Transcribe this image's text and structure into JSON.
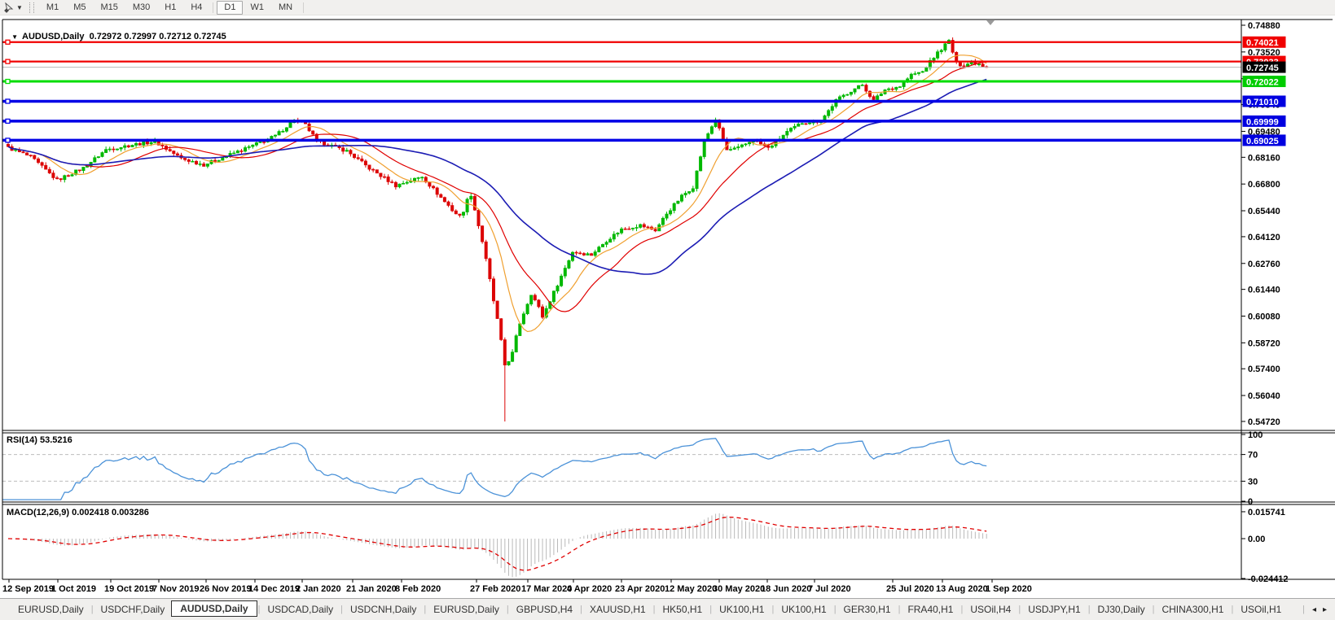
{
  "toolbar": {
    "timeframes": [
      "M1",
      "M5",
      "M15",
      "M30",
      "H1",
      "H4",
      "D1",
      "W1",
      "MN"
    ],
    "active_timeframe": "D1"
  },
  "chart": {
    "title_symbol": "AUDUSD,Daily",
    "title_ohlc": "0.72972 0.72997 0.72712 0.72745",
    "rsi_label": "RSI(14) 53.5216",
    "macd_label": "MACD(12,26,9) 0.002418 0.003286"
  },
  "chart_data": {
    "type": "candlestick",
    "symbol": "AUDUSD",
    "timeframe": "Daily",
    "current_quote": {
      "open": 0.72972,
      "high": 0.72997,
      "low": 0.72712,
      "close": 0.72745
    },
    "y_range": [
      0.5472,
      0.7488
    ],
    "y_axis_labels": [
      "0.74880",
      "0.73520",
      "0.72160",
      "0.70840",
      "0.69480",
      "0.68160",
      "0.66800",
      "0.65440",
      "0.64120",
      "0.62760",
      "0.61440",
      "0.60080",
      "0.58720",
      "0.57400",
      "0.56040",
      "0.54720"
    ],
    "x_axis_labels": [
      "12 Sep 2019",
      "1 Oct 2019",
      "19 Oct 2019",
      "7 Nov 2019",
      "26 Nov 2019",
      "14 Dec 2019",
      "2 Jan 2020",
      "21 Jan 2020",
      "8 Feb 2020",
      "27 Feb 2020",
      "17 Mar 2020",
      "4 Apr 2020",
      "23 Apr 2020",
      "12 May 2020",
      "30 May 2020",
      "18 Jun 2020",
      "7 Jul 2020",
      "25 Jul 2020",
      "13 Aug 2020",
      "1 Sep 2020"
    ],
    "candle_count": 261,
    "close_anchors": [
      [
        0,
        0.6865
      ],
      [
        6,
        0.6818
      ],
      [
        13,
        0.67
      ],
      [
        20,
        0.6762
      ],
      [
        26,
        0.6855
      ],
      [
        33,
        0.688
      ],
      [
        39,
        0.6897
      ],
      [
        46,
        0.681
      ],
      [
        52,
        0.6778
      ],
      [
        59,
        0.683
      ],
      [
        65,
        0.6875
      ],
      [
        71,
        0.6925
      ],
      [
        76,
        0.7005
      ],
      [
        79,
        0.698
      ],
      [
        82,
        0.69
      ],
      [
        90,
        0.6848
      ],
      [
        96,
        0.676
      ],
      [
        103,
        0.6672
      ],
      [
        110,
        0.6718
      ],
      [
        116,
        0.659
      ],
      [
        120,
        0.6512
      ],
      [
        123,
        0.6632
      ],
      [
        126,
        0.639
      ],
      [
        130,
        0.5985
      ],
      [
        132,
        0.576
      ],
      [
        134,
        0.5815
      ],
      [
        136,
        0.5975
      ],
      [
        139,
        0.613
      ],
      [
        142,
        0.6005
      ],
      [
        146,
        0.617
      ],
      [
        150,
        0.6335
      ],
      [
        155,
        0.632
      ],
      [
        159,
        0.6392
      ],
      [
        163,
        0.645
      ],
      [
        168,
        0.647
      ],
      [
        172,
        0.6445
      ],
      [
        175,
        0.653
      ],
      [
        179,
        0.6618
      ],
      [
        182,
        0.6665
      ],
      [
        185,
        0.69
      ],
      [
        188,
        0.701
      ],
      [
        191,
        0.6852
      ],
      [
        194,
        0.6862
      ],
      [
        198,
        0.6905
      ],
      [
        202,
        0.6862
      ],
      [
        207,
        0.6945
      ],
      [
        211,
        0.6992
      ],
      [
        216,
        0.7002
      ],
      [
        220,
        0.7105
      ],
      [
        224,
        0.7155
      ],
      [
        227,
        0.7185
      ],
      [
        230,
        0.7105
      ],
      [
        233,
        0.716
      ],
      [
        237,
        0.7178
      ],
      [
        240,
        0.7235
      ],
      [
        243,
        0.7252
      ],
      [
        245,
        0.7302
      ],
      [
        247,
        0.7348
      ],
      [
        250,
        0.7408
      ],
      [
        252,
        0.7295
      ],
      [
        254,
        0.7282
      ],
      [
        256,
        0.7302
      ],
      [
        258,
        0.7292
      ],
      [
        260,
        0.72745
      ]
    ],
    "wick_overrides": {
      "132": {
        "low": 0.5472
      },
      "250": {
        "high": 0.7418
      }
    },
    "candle_up_color": "#00b800",
    "candle_down_color": "#dc0404",
    "moving_averages": [
      {
        "name": "ma-fast",
        "period": 10,
        "color": "#f0a030"
      },
      {
        "name": "ma-mid",
        "period": 21,
        "color": "#e00000"
      },
      {
        "name": "ma-slow",
        "period": 45,
        "color": "#1c1cb4"
      }
    ],
    "horizontal_lines": [
      {
        "price": 0.74021,
        "label": "0.74021",
        "color": "#f00000",
        "tag_bg": "#f00000",
        "width": 2.2,
        "role": "resistance"
      },
      {
        "price": 0.73033,
        "label": "0.73033",
        "color": "#f00000",
        "tag_bg": "#f00000",
        "width": 2.2,
        "role": "resistance"
      },
      {
        "price": 0.72745,
        "label": "0.72745",
        "color": "#b9b9b9",
        "tag_bg": "#000000",
        "width": 1,
        "role": "current-price"
      },
      {
        "price": 0.72022,
        "label": "0.72022",
        "color": "#00dd00",
        "tag_bg": "#00cc00",
        "width": 3,
        "role": "pivot"
      },
      {
        "price": 0.7101,
        "label": "0.71010",
        "color": "#0000e6",
        "tag_bg": "#0000e0",
        "width": 3.5,
        "role": "support"
      },
      {
        "price": 0.69999,
        "label": "0.69999",
        "color": "#0000e6",
        "tag_bg": "#0000e0",
        "width": 3.5,
        "role": "support"
      },
      {
        "price": 0.69025,
        "label": "0.69025",
        "color": "#0000e6",
        "tag_bg": "#0000e0",
        "width": 3.5,
        "role": "support"
      }
    ],
    "rsi": {
      "period": 14,
      "value": 53.5216,
      "levels": [
        100,
        70,
        30,
        0
      ],
      "dashed_levels": [
        70,
        30
      ],
      "line_color": "#4b92d8"
    },
    "macd": {
      "fast": 12,
      "slow": 26,
      "signal": 9,
      "macd_value": 0.002418,
      "signal_value": 0.003286,
      "axis_labels": [
        "0.015741",
        "0.00",
        "-0.024412"
      ],
      "axis_values": [
        0.015741,
        0,
        -0.024412
      ],
      "histogram_color": "#b9b9b9",
      "signal_color": "#e00000"
    }
  },
  "tabs": {
    "items": [
      "EURUSD,Daily",
      "USDCHF,Daily",
      "AUDUSD,Daily",
      "USDCAD,Daily",
      "USDCNH,Daily",
      "EURUSD,Daily",
      "GBPUSD,H4",
      "XAUUSD,H1",
      "HK50,H1",
      "UK100,H1",
      "UK100,H1",
      "GER30,H1",
      "FRA40,H1",
      "USOil,H4",
      "USDJPY,H1",
      "DJ30,Daily",
      "CHINA300,H1",
      "USOil,H1"
    ],
    "active_index": 2,
    "scroll_left": "◂",
    "scroll_right": "▸"
  }
}
